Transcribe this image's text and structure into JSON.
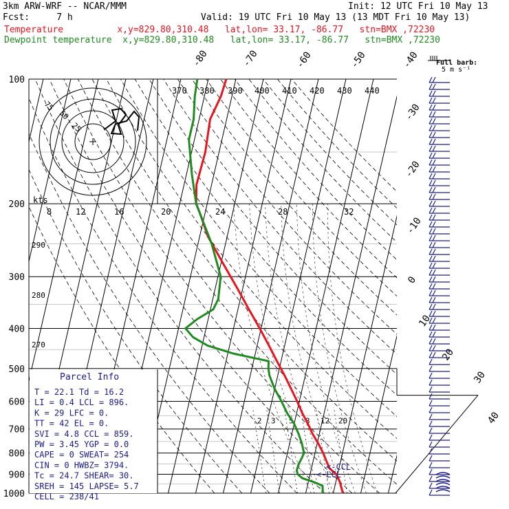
{
  "header": {
    "model": "3km ARW-WRF -- NCAR/MMM",
    "init": "Init: 12 UTC Fri 10 May 13",
    "fcst": "Fcst:     7 h",
    "valid": "Valid: 19 UTC Fri 10 May 13 (13 MDT Fri 10 May 13)",
    "line_temp": "Temperature          x,y=829.80,310.48   lat,lon= 33.17, -86.77   stn=BMX ,72230",
    "line_dewp": "Dewpoint temperature  x,y=829.80,310.48   lat,lon= 33.17, -86.77   stn=BMX ,72230"
  },
  "colors": {
    "temperature": "#e8141e",
    "dewpoint": "#1f8a1f",
    "wind": "#1a1a8c",
    "ink": "#000000"
  },
  "chart_data": {
    "type": "line",
    "title": "",
    "xlabel": "",
    "ylabel": "",
    "y_scale": "log-pressure",
    "pressure_levels": [
      100,
      200,
      300,
      400,
      500,
      600,
      700,
      800,
      900,
      1000
    ],
    "ylim": [
      1000,
      100
    ],
    "isotherm_labels": [
      "-80",
      "-70",
      "-60",
      "-50",
      "-40",
      "-30",
      "-20",
      "-10",
      "0",
      "10",
      "20",
      "30",
      "40"
    ],
    "theta_labels": [
      "290",
      "280",
      "270"
    ],
    "mixing_ratio_labels": [
      "2",
      "3",
      "5",
      "8",
      "12",
      "20"
    ],
    "series": [
      {
        "name": "Temperature",
        "pressure": [
          1000,
          970,
          940,
          900,
          870,
          840,
          800,
          760,
          720,
          680,
          640,
          600,
          560,
          520,
          480,
          440,
          400,
          360,
          320,
          280,
          240,
          210,
          200,
          180,
          150,
          125,
          110,
          100
        ],
        "temp_c": [
          23.5,
          22.5,
          21.5,
          19.5,
          16.5,
          15.0,
          13.0,
          10.5,
          7.6,
          5.0,
          2.0,
          -0.8,
          -4.0,
          -7.5,
          -11.5,
          -15.7,
          -20.5,
          -26.0,
          -32.0,
          -39.0,
          -47.0,
          -52.0,
          -54.0,
          -55.5,
          -55.0,
          -56.0,
          -54.0,
          -53.5
        ]
      },
      {
        "name": "Dewpoint temperature",
        "pressure": [
          1000,
          960,
          940,
          920,
          900,
          880,
          850,
          820,
          800,
          760,
          720,
          680,
          640,
          600,
          560,
          520,
          500,
          480,
          460,
          440,
          420,
          400,
          380,
          360,
          340,
          300,
          250,
          200,
          170,
          140,
          125,
          110,
          100
        ],
        "temp_c": [
          16.2,
          15.5,
          12.0,
          7.5,
          5.5,
          4.8,
          5.0,
          5.7,
          6.0,
          4.5,
          2.5,
          0.0,
          -3.5,
          -6.5,
          -10.0,
          -13.0,
          -14.0,
          -14.5,
          -28.0,
          -38.0,
          -44.0,
          -47.5,
          -44.0,
          -39.0,
          -38.0,
          -39.0,
          -45.0,
          -54.0,
          -58.0,
          -62.0,
          -62.0,
          -63.5,
          -64.0
        ]
      }
    ],
    "annotations": [
      "<-CCL",
      "<-LCL"
    ]
  },
  "hodograph": {
    "units": "kts",
    "ring_labels": [
      "75",
      "50",
      "25"
    ],
    "speed_labels": [
      "8",
      "12",
      "16",
      "20",
      "24",
      "28",
      "32"
    ],
    "theta_e_labels": [
      "370",
      "380",
      "390",
      "400",
      "410",
      "420",
      "430",
      "440"
    ]
  },
  "wind_legend": {
    "label1": "Full barb:",
    "label2": "5 m s⁻¹"
  },
  "parcel_info": {
    "title": "Parcel Info",
    "rows": [
      "T  =    22.1  Td =  16.2",
      "LI =     0.4  LCL =  896.",
      "K  =      29  LFC =    0.",
      "TT =      42  EL  =    0.",
      "SVI =    4.8  CCL = 859.",
      "PW =    3.45  YGP =  0.0",
      "CAPE =     0  SWEAT=  254",
      "CIN =      0  HWBZ= 3794.",
      "Tc =    24.7  SHEAR=  30.",
      "SREH =   145  LAPSE=  5.7",
      "CELL = 238/41"
    ]
  }
}
